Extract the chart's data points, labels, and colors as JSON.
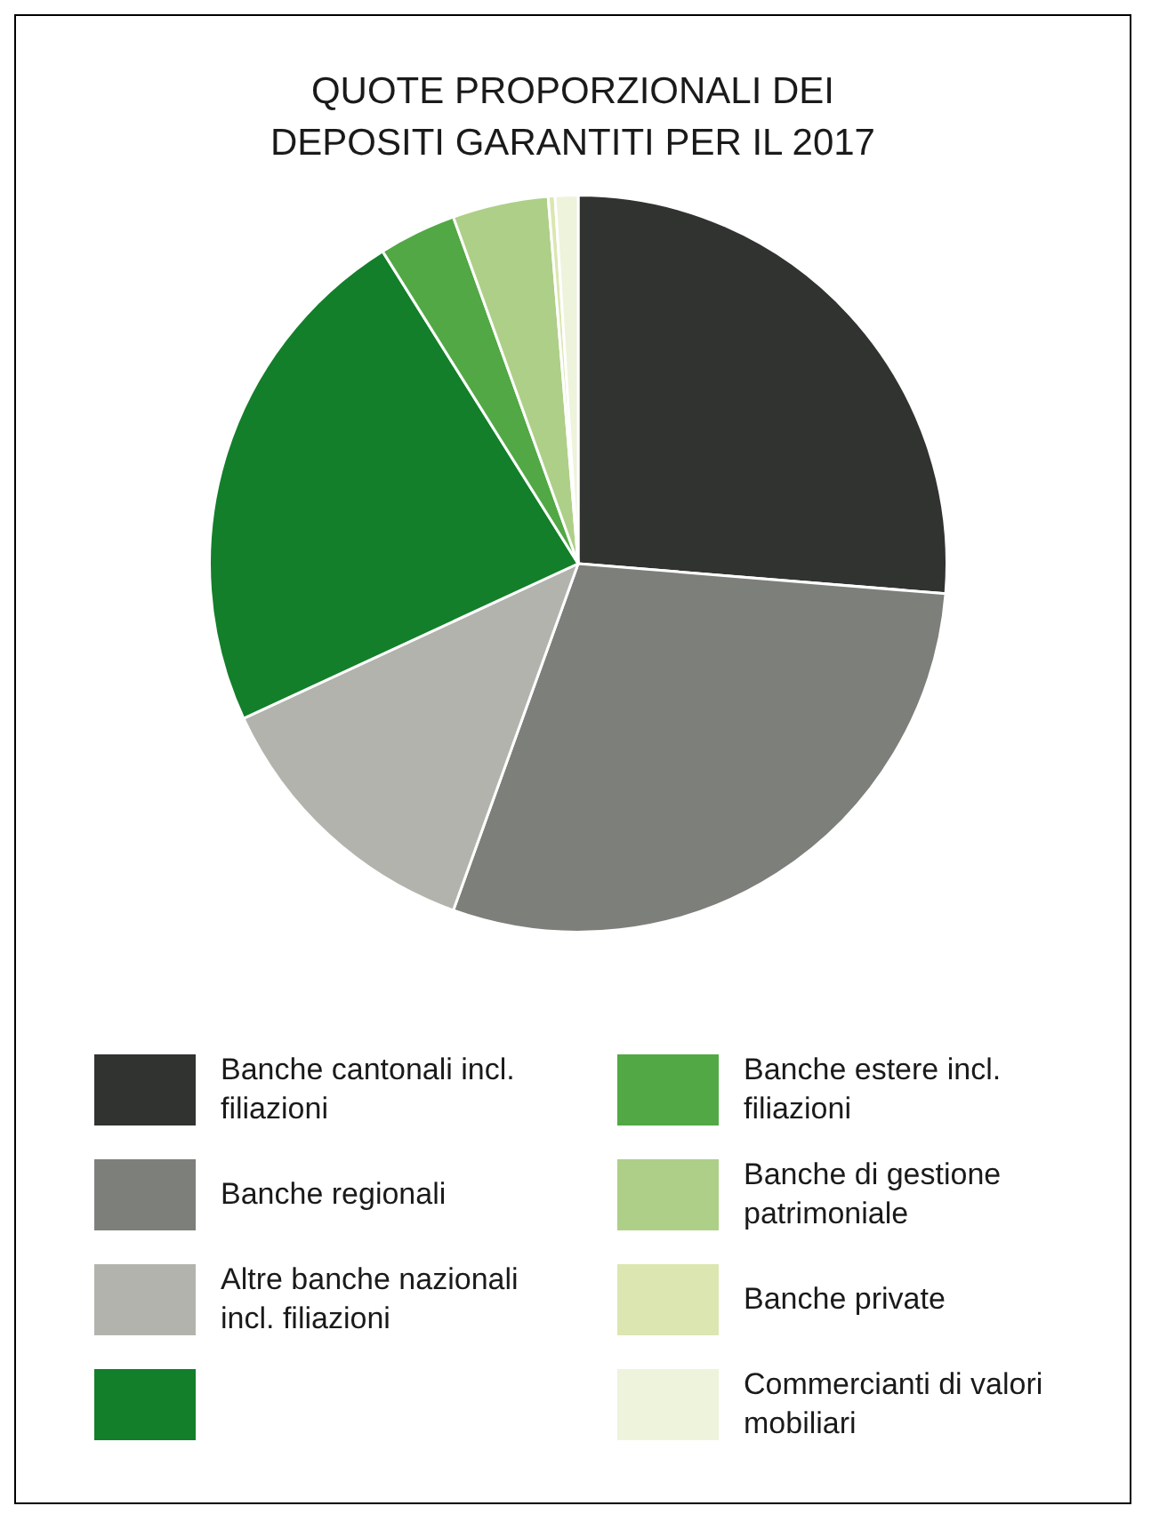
{
  "chart_data": {
    "type": "pie",
    "title": "QUOTE PROPORZIONALI DEI DEPOSITI GARANTITI PER IL 2017",
    "categories": [
      "Banche cantonali incl. filiazioni",
      "Banche regionali",
      "Altre banche nazionali incl. filiazioni",
      null,
      "Banche estere incl. filiazioni",
      "Banche di gestione patrimoniale",
      "Banche private",
      "Commercianti di valori mobiliari"
    ],
    "values": [
      26.3,
      29.2,
      12.6,
      23.0,
      3.4,
      4.2,
      0.3,
      1.0
    ],
    "colors": [
      "#313331",
      "#7d7f7b",
      "#b3b3ae",
      "#137f2a",
      "#52a844",
      "#aecf87",
      "#dbe6b1",
      "#eef3dc"
    ],
    "legend": "bottom"
  }
}
